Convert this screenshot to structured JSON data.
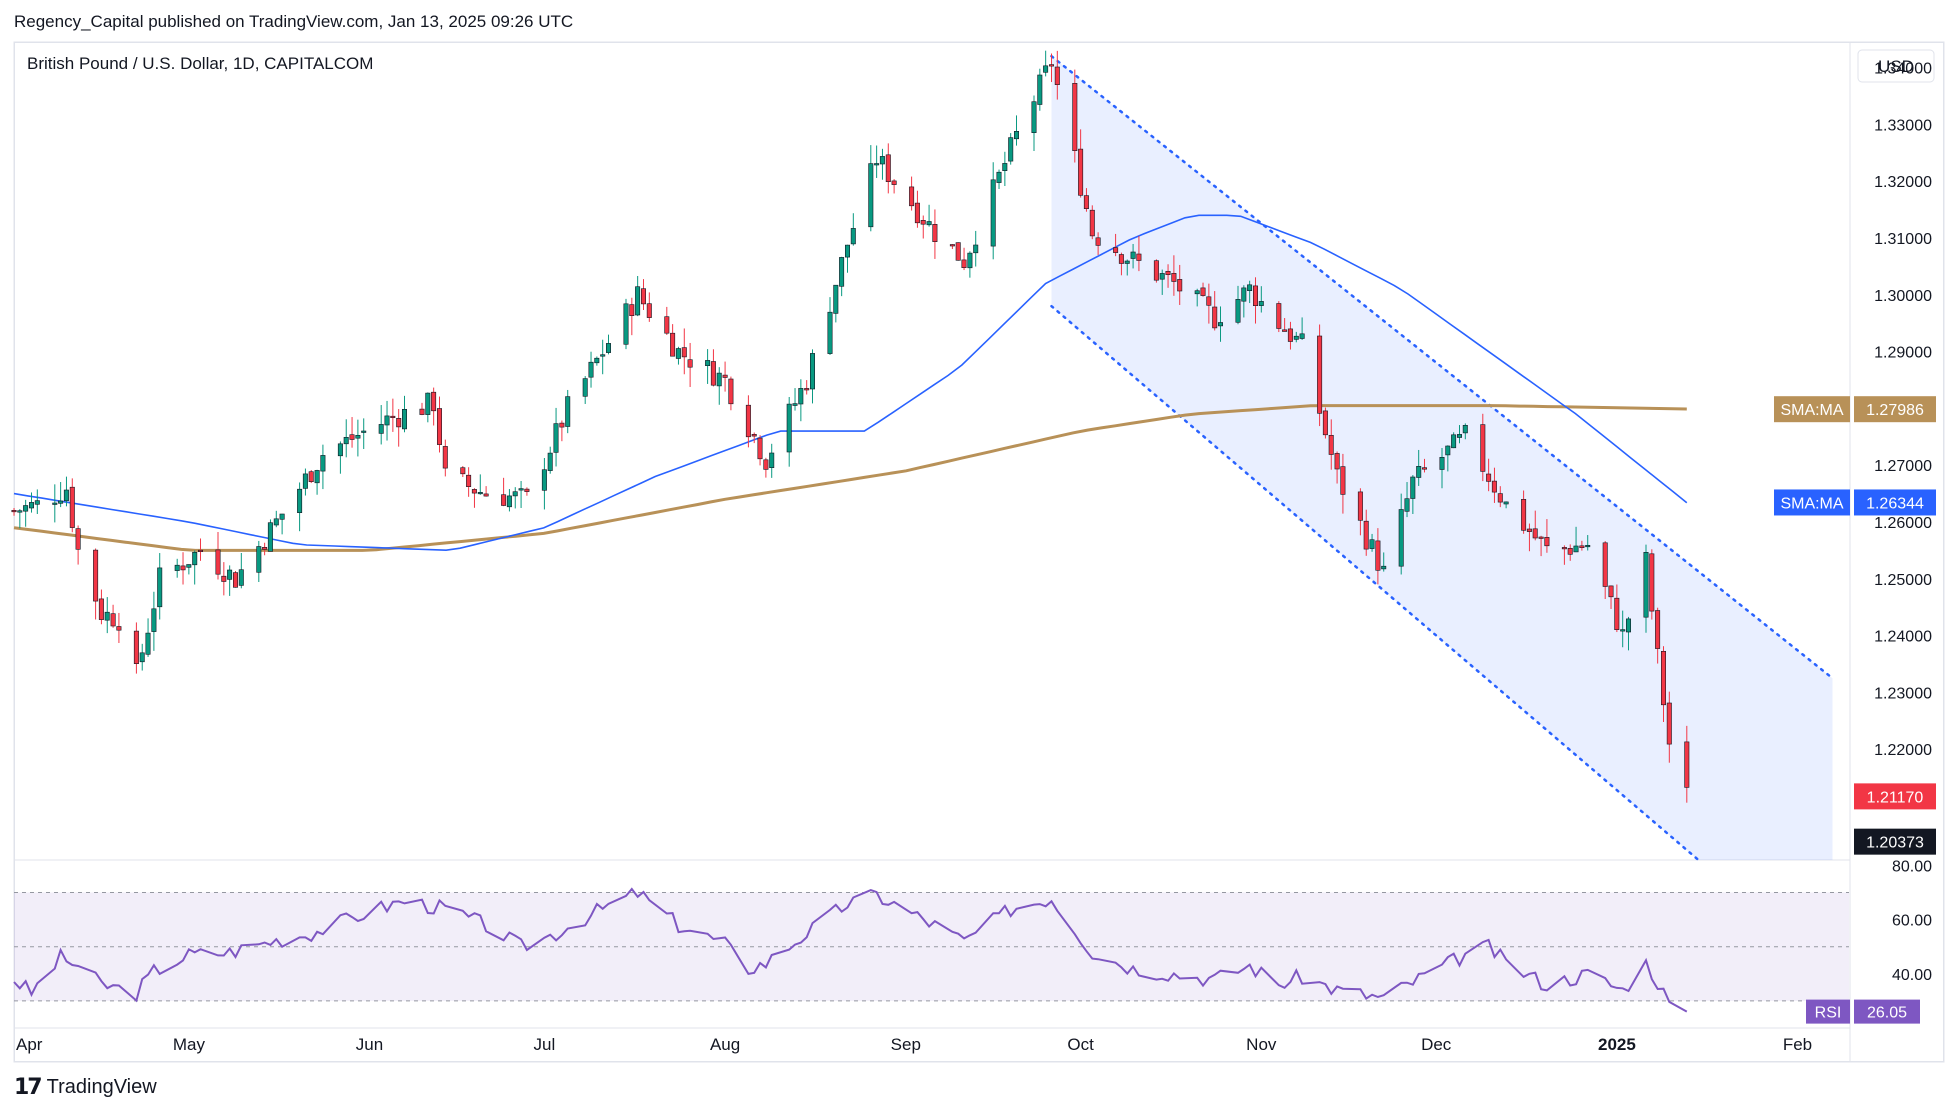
{
  "header": {
    "publisher": "Regency_Capital published on TradingView.com, Jan 13, 2025 09:26 UTC",
    "symbol": "British Pound / U.S. Dollar, 1D, CAPITALCOM",
    "currency": "USD"
  },
  "footer": {
    "logo_text": "TradingView"
  },
  "colors": {
    "up": "#089981",
    "down": "#f23645",
    "sma50": "#2962ff",
    "sma200": "#b89158",
    "rsi": "#7e57c2",
    "channel": "#2962ff",
    "grid": "#e0e3eb"
  },
  "chart_data": [
    {
      "type": "candlestick",
      "title": "British Pound / U.S. Dollar, 1D, CAPITALCOM",
      "x_ticks": [
        "Apr",
        "May",
        "Jun",
        "Jul",
        "Aug",
        "Sep",
        "Oct",
        "Nov",
        "Dec",
        "2025",
        "Feb"
      ],
      "x_tick_dates": [
        "2024-04-01",
        "2024-05-01",
        "2024-06-01",
        "2024-07-01",
        "2024-08-01",
        "2024-09-01",
        "2024-10-01",
        "2024-11-01",
        "2024-12-01",
        "2025-01-01",
        "2025-02-01"
      ],
      "xlim": [
        "2024-04-01",
        "2025-02-10"
      ],
      "ylim": [
        1.2005,
        1.3445
      ],
      "y_ticks": [
        "1.34000",
        "1.33000",
        "1.32000",
        "1.31000",
        "1.30000",
        "1.29000",
        "1.28000",
        "1.27000",
        "1.26000",
        "1.25000",
        "1.24000",
        "1.23000",
        "1.22000"
      ],
      "y_tick_values": [
        1.34,
        1.33,
        1.32,
        1.31,
        1.3,
        1.29,
        1.28,
        1.27,
        1.26,
        1.25,
        1.24,
        1.23,
        1.22
      ],
      "price_path": [
        [
          "2024-04-01",
          1.262
        ],
        [
          "2024-04-05",
          1.263
        ],
        [
          "2024-04-10",
          1.266
        ],
        [
          "2024-04-12",
          1.255
        ],
        [
          "2024-04-16",
          1.244
        ],
        [
          "2024-04-19",
          1.243
        ],
        [
          "2024-04-22",
          1.233
        ],
        [
          "2024-04-26",
          1.25
        ],
        [
          "2024-05-03",
          1.255
        ],
        [
          "2024-05-09",
          1.25
        ],
        [
          "2024-05-16",
          1.26
        ],
        [
          "2024-05-24",
          1.272
        ],
        [
          "2024-06-04",
          1.278
        ],
        [
          "2024-06-12",
          1.281
        ],
        [
          "2024-06-14",
          1.268
        ],
        [
          "2024-06-21",
          1.265
        ],
        [
          "2024-06-28",
          1.264
        ],
        [
          "2024-07-05",
          1.28
        ],
        [
          "2024-07-17",
          1.3
        ],
        [
          "2024-07-24",
          1.29
        ],
        [
          "2024-08-01",
          1.285
        ],
        [
          "2024-08-05",
          1.277
        ],
        [
          "2024-08-08",
          1.271
        ],
        [
          "2024-08-15",
          1.285
        ],
        [
          "2024-08-22",
          1.309
        ],
        [
          "2024-08-27",
          1.324
        ],
        [
          "2024-09-06",
          1.311
        ],
        [
          "2024-09-11",
          1.306
        ],
        [
          "2024-09-20",
          1.328
        ],
        [
          "2024-09-26",
          1.341
        ],
        [
          "2024-10-03",
          1.311
        ],
        [
          "2024-10-10",
          1.306
        ],
        [
          "2024-10-17",
          1.302
        ],
        [
          "2024-10-24",
          1.296
        ],
        [
          "2024-10-30",
          1.301
        ],
        [
          "2024-11-04",
          1.295
        ],
        [
          "2024-11-08",
          1.291
        ],
        [
          "2024-11-14",
          1.268
        ],
        [
          "2024-11-22",
          1.251
        ],
        [
          "2024-11-27",
          1.267
        ],
        [
          "2024-12-06",
          1.275
        ],
        [
          "2024-12-13",
          1.263
        ],
        [
          "2024-12-20",
          1.255
        ],
        [
          "2024-12-27",
          1.256
        ],
        [
          "2025-01-02",
          1.24
        ],
        [
          "2025-01-06",
          1.253
        ],
        [
          "2025-01-08",
          1.236
        ],
        [
          "2025-01-10",
          1.221
        ],
        [
          "2025-01-13",
          1.2117
        ]
      ],
      "overlays": {
        "sma_50": {
          "label": "SMA:MA",
          "value": "1.26344",
          "path": [
            [
              "2024-04-01",
              1.265
            ],
            [
              "2024-05-01",
              1.26
            ],
            [
              "2024-05-20",
              1.256
            ],
            [
              "2024-06-15",
              1.255
            ],
            [
              "2024-07-01",
              1.259
            ],
            [
              "2024-07-20",
              1.268
            ],
            [
              "2024-08-10",
              1.276
            ],
            [
              "2024-08-25",
              1.276
            ],
            [
              "2024-09-10",
              1.287
            ],
            [
              "2024-09-25",
              1.302
            ],
            [
              "2024-10-10",
              1.31
            ],
            [
              "2024-10-20",
              1.314
            ],
            [
              "2024-10-28",
              1.314
            ],
            [
              "2024-11-10",
              1.309
            ],
            [
              "2024-11-25",
              1.301
            ],
            [
              "2024-12-10",
              1.29
            ],
            [
              "2024-12-25",
              1.279
            ],
            [
              "2025-01-13",
              1.2634
            ]
          ]
        },
        "sma_200": {
          "label": "SMA:MA",
          "value": "1.27986",
          "path": [
            [
              "2024-04-01",
              1.259
            ],
            [
              "2024-05-01",
              1.255
            ],
            [
              "2024-06-01",
              1.255
            ],
            [
              "2024-07-01",
              1.258
            ],
            [
              "2024-08-01",
              1.264
            ],
            [
              "2024-09-01",
              1.269
            ],
            [
              "2024-10-01",
              1.276
            ],
            [
              "2024-10-20",
              1.279
            ],
            [
              "2024-11-10",
              1.2805
            ],
            [
              "2024-12-10",
              1.2805
            ],
            [
              "2025-01-13",
              1.2799
            ]
          ]
        }
      },
      "descending_channel": {
        "upper": [
          [
            "2024-09-26",
            1.342
          ],
          [
            "2025-02-07",
            1.2325
          ]
        ],
        "lower": [
          [
            "2024-09-26",
            1.298
          ],
          [
            "2025-01-15",
            1.2005
          ]
        ],
        "fill_end": "2025-02-07"
      },
      "price_labels": [
        {
          "value": "1.21170",
          "price": 1.2117,
          "color": "#f23645"
        },
        {
          "value": "1.20373",
          "price": 1.20373,
          "color": "#131722"
        }
      ]
    },
    {
      "type": "line",
      "title": "RSI",
      "ylim": [
        20,
        82
      ],
      "y_ticks": [
        "80.00",
        "60.00",
        "40.00"
      ],
      "y_tick_values": [
        80,
        60,
        40
      ],
      "band": [
        30,
        70
      ],
      "last_label": "RSI",
      "last_value": "26.05",
      "values": [
        [
          "2024-04-01",
          38
        ],
        [
          "2024-04-04",
          33
        ],
        [
          "2024-04-09",
          46
        ],
        [
          "2024-04-12",
          43
        ],
        [
          "2024-04-16",
          36
        ],
        [
          "2024-04-22",
          33
        ],
        [
          "2024-04-25",
          41
        ],
        [
          "2024-05-01",
          47
        ],
        [
          "2024-05-08",
          48
        ],
        [
          "2024-05-15",
          52
        ],
        [
          "2024-05-22",
          55
        ],
        [
          "2024-06-01",
          63
        ],
        [
          "2024-06-07",
          67
        ],
        [
          "2024-06-14",
          64
        ],
        [
          "2024-06-21",
          58
        ],
        [
          "2024-06-27",
          50
        ],
        [
          "2024-07-03",
          55
        ],
        [
          "2024-07-10",
          63
        ],
        [
          "2024-07-17",
          70
        ],
        [
          "2024-07-24",
          58
        ],
        [
          "2024-08-01",
          51
        ],
        [
          "2024-08-05",
          42
        ],
        [
          "2024-08-08",
          44
        ],
        [
          "2024-08-15",
          55
        ],
        [
          "2024-08-22",
          66
        ],
        [
          "2024-08-27",
          69
        ],
        [
          "2024-09-06",
          58
        ],
        [
          "2024-09-11",
          52
        ],
        [
          "2024-09-19",
          64
        ],
        [
          "2024-09-26",
          68
        ],
        [
          "2024-10-03",
          48
        ],
        [
          "2024-10-10",
          42
        ],
        [
          "2024-10-17",
          40
        ],
        [
          "2024-10-24",
          38
        ],
        [
          "2024-10-30",
          43
        ],
        [
          "2024-11-04",
          36
        ],
        [
          "2024-11-08",
          39
        ],
        [
          "2024-11-14",
          34
        ],
        [
          "2024-11-22",
          31
        ],
        [
          "2024-11-27",
          37
        ],
        [
          "2024-12-06",
          47
        ],
        [
          "2024-12-10",
          50
        ],
        [
          "2024-12-13",
          44
        ],
        [
          "2024-12-20",
          36
        ],
        [
          "2024-12-27",
          40
        ],
        [
          "2025-01-02",
          34
        ],
        [
          "2025-01-06",
          44
        ],
        [
          "2025-01-08",
          37
        ],
        [
          "2025-01-10",
          29
        ],
        [
          "2025-01-13",
          26.05
        ]
      ]
    }
  ]
}
